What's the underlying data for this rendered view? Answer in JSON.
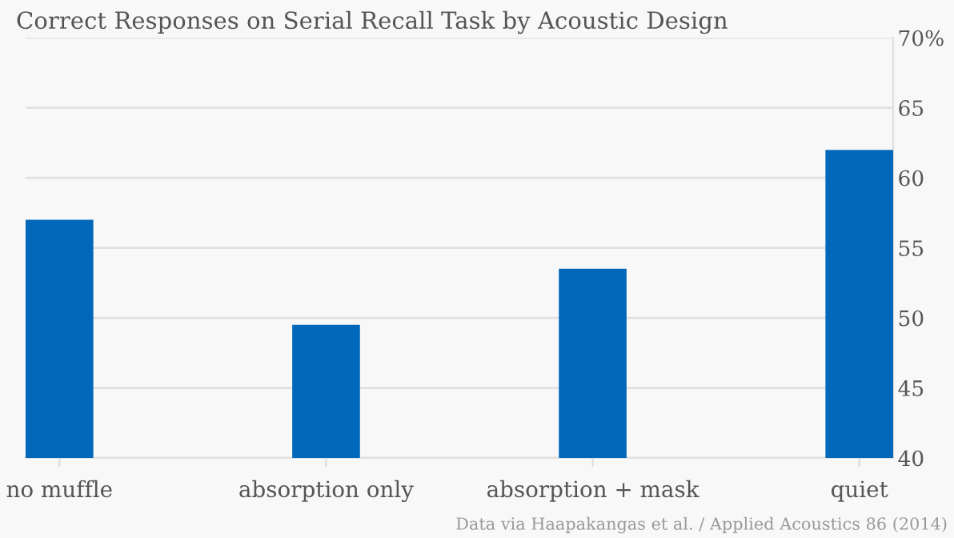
{
  "chart_data": {
    "type": "bar",
    "title": "Correct Responses on Serial Recall Task by Acoustic Design",
    "categories": [
      "no muffle",
      "absorption only",
      "absorption + mask",
      "quiet"
    ],
    "values": [
      57.0,
      49.5,
      53.5,
      62.0
    ],
    "color": "#0068bb",
    "ylim": [
      40,
      70
    ],
    "yticks": [
      40,
      45,
      50,
      55,
      60,
      65,
      {
        "value": 70,
        "label": "70%"
      }
    ],
    "grid": "y",
    "annotations": [
      "Data via Haapakangas et al. / Applied Acoustics 86 (2014)"
    ]
  }
}
